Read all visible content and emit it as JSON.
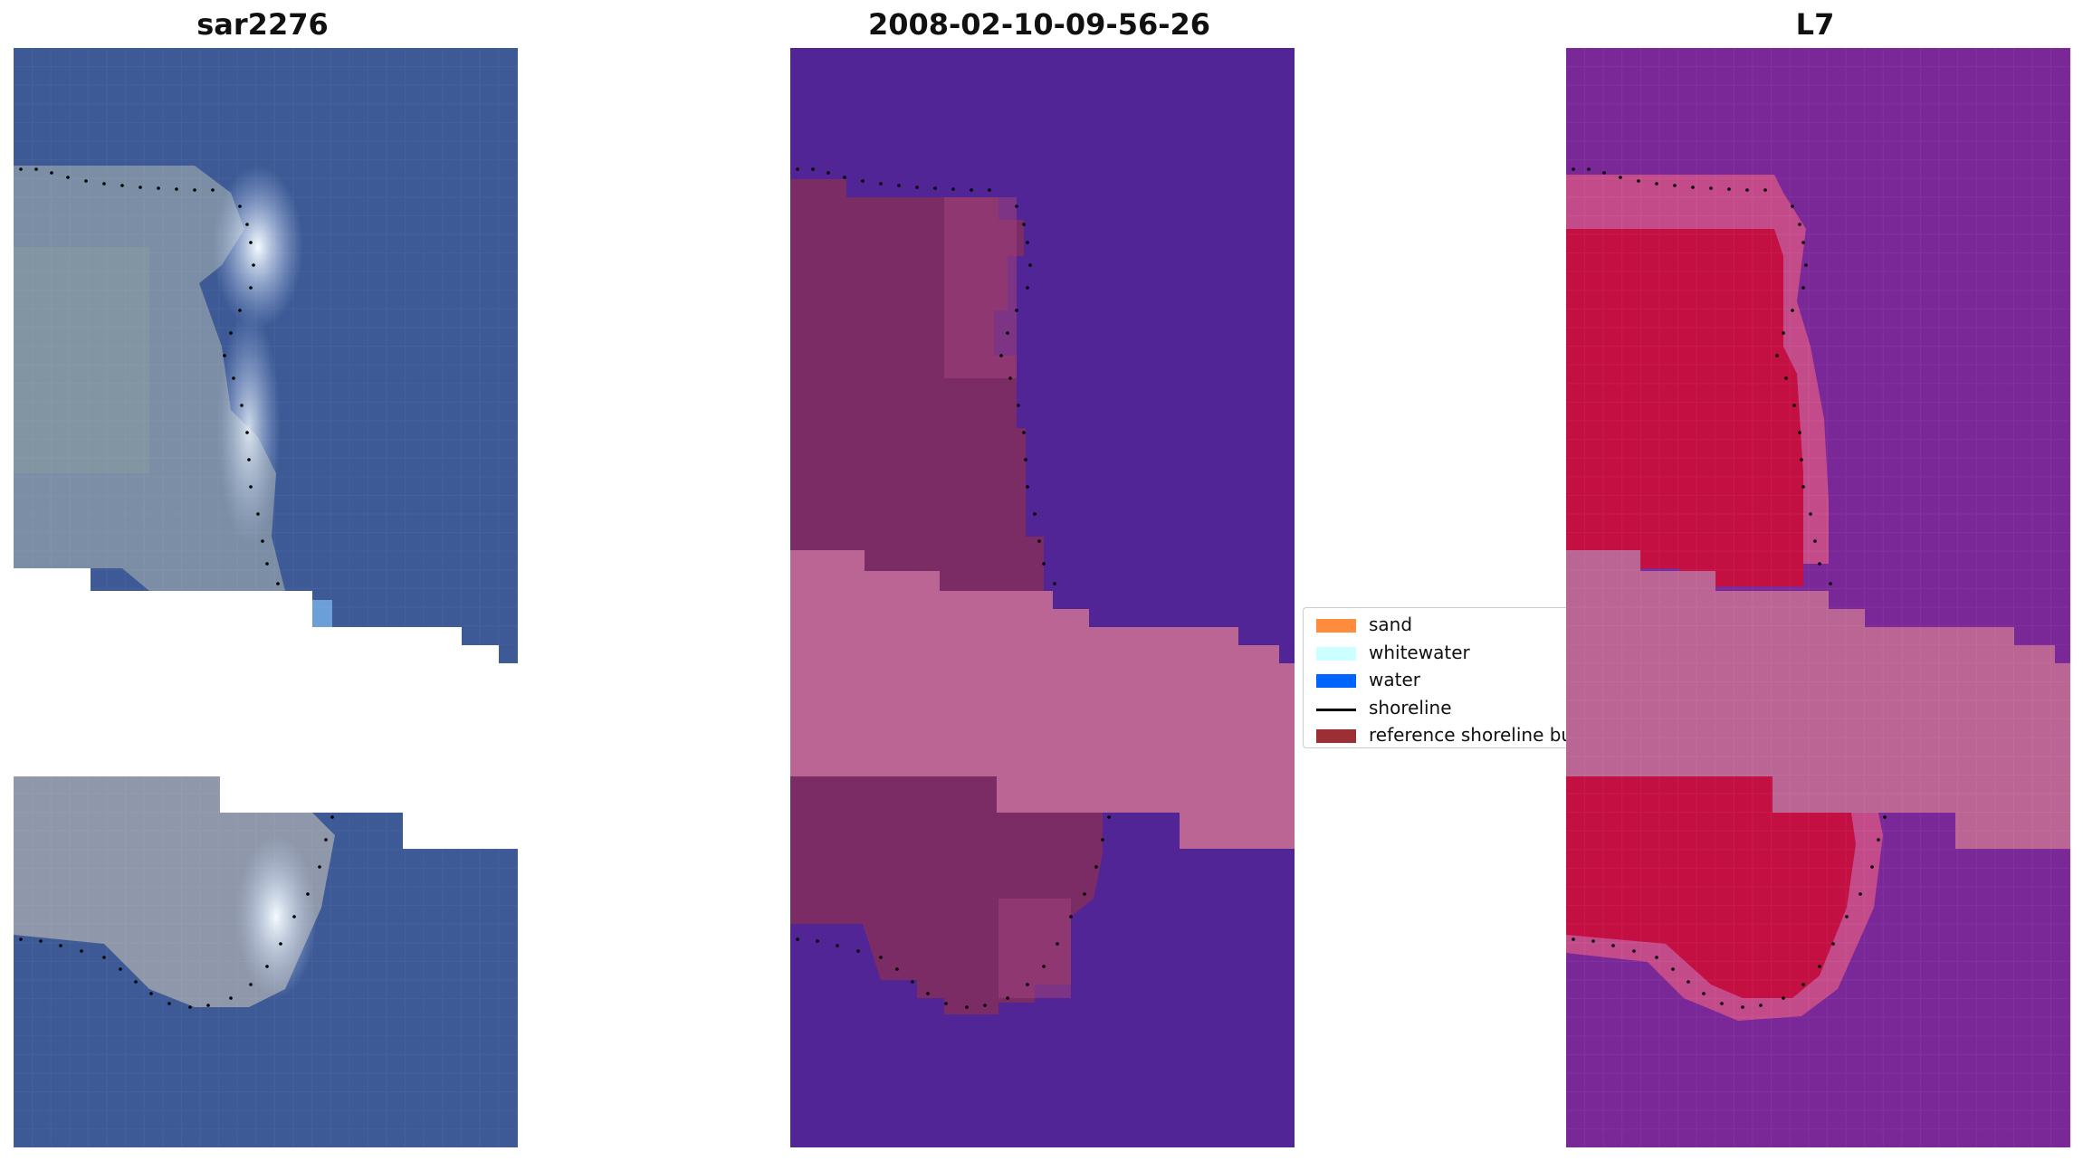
{
  "panels": [
    {
      "title": "sar2276",
      "view": "rgb"
    },
    {
      "title": "2008-02-10-09-56-26",
      "view": "classified"
    },
    {
      "title": "L7",
      "view": "index"
    }
  ],
  "legend": {
    "items": [
      {
        "label": "sand",
        "color": "#ff8c3c",
        "kind": "patch"
      },
      {
        "label": "whitewater",
        "color": "#ccffff",
        "kind": "patch"
      },
      {
        "label": "water",
        "color": "#0064ff",
        "kind": "patch"
      },
      {
        "label": "shoreline",
        "color": "#000000",
        "kind": "line"
      },
      {
        "label": "reference shoreline buffer",
        "color": "#9b2f33",
        "kind": "patch"
      }
    ]
  },
  "colors": {
    "rgb_water": "#3d5a96",
    "rgb_land": "#8091a6",
    "classified_water": "#522597",
    "classified_land": "#7c2c64",
    "classified_buffer": "#ba6594",
    "index_water": "#7a2798",
    "index_land": "#c30f42",
    "index_buffer": "#ba6594"
  }
}
